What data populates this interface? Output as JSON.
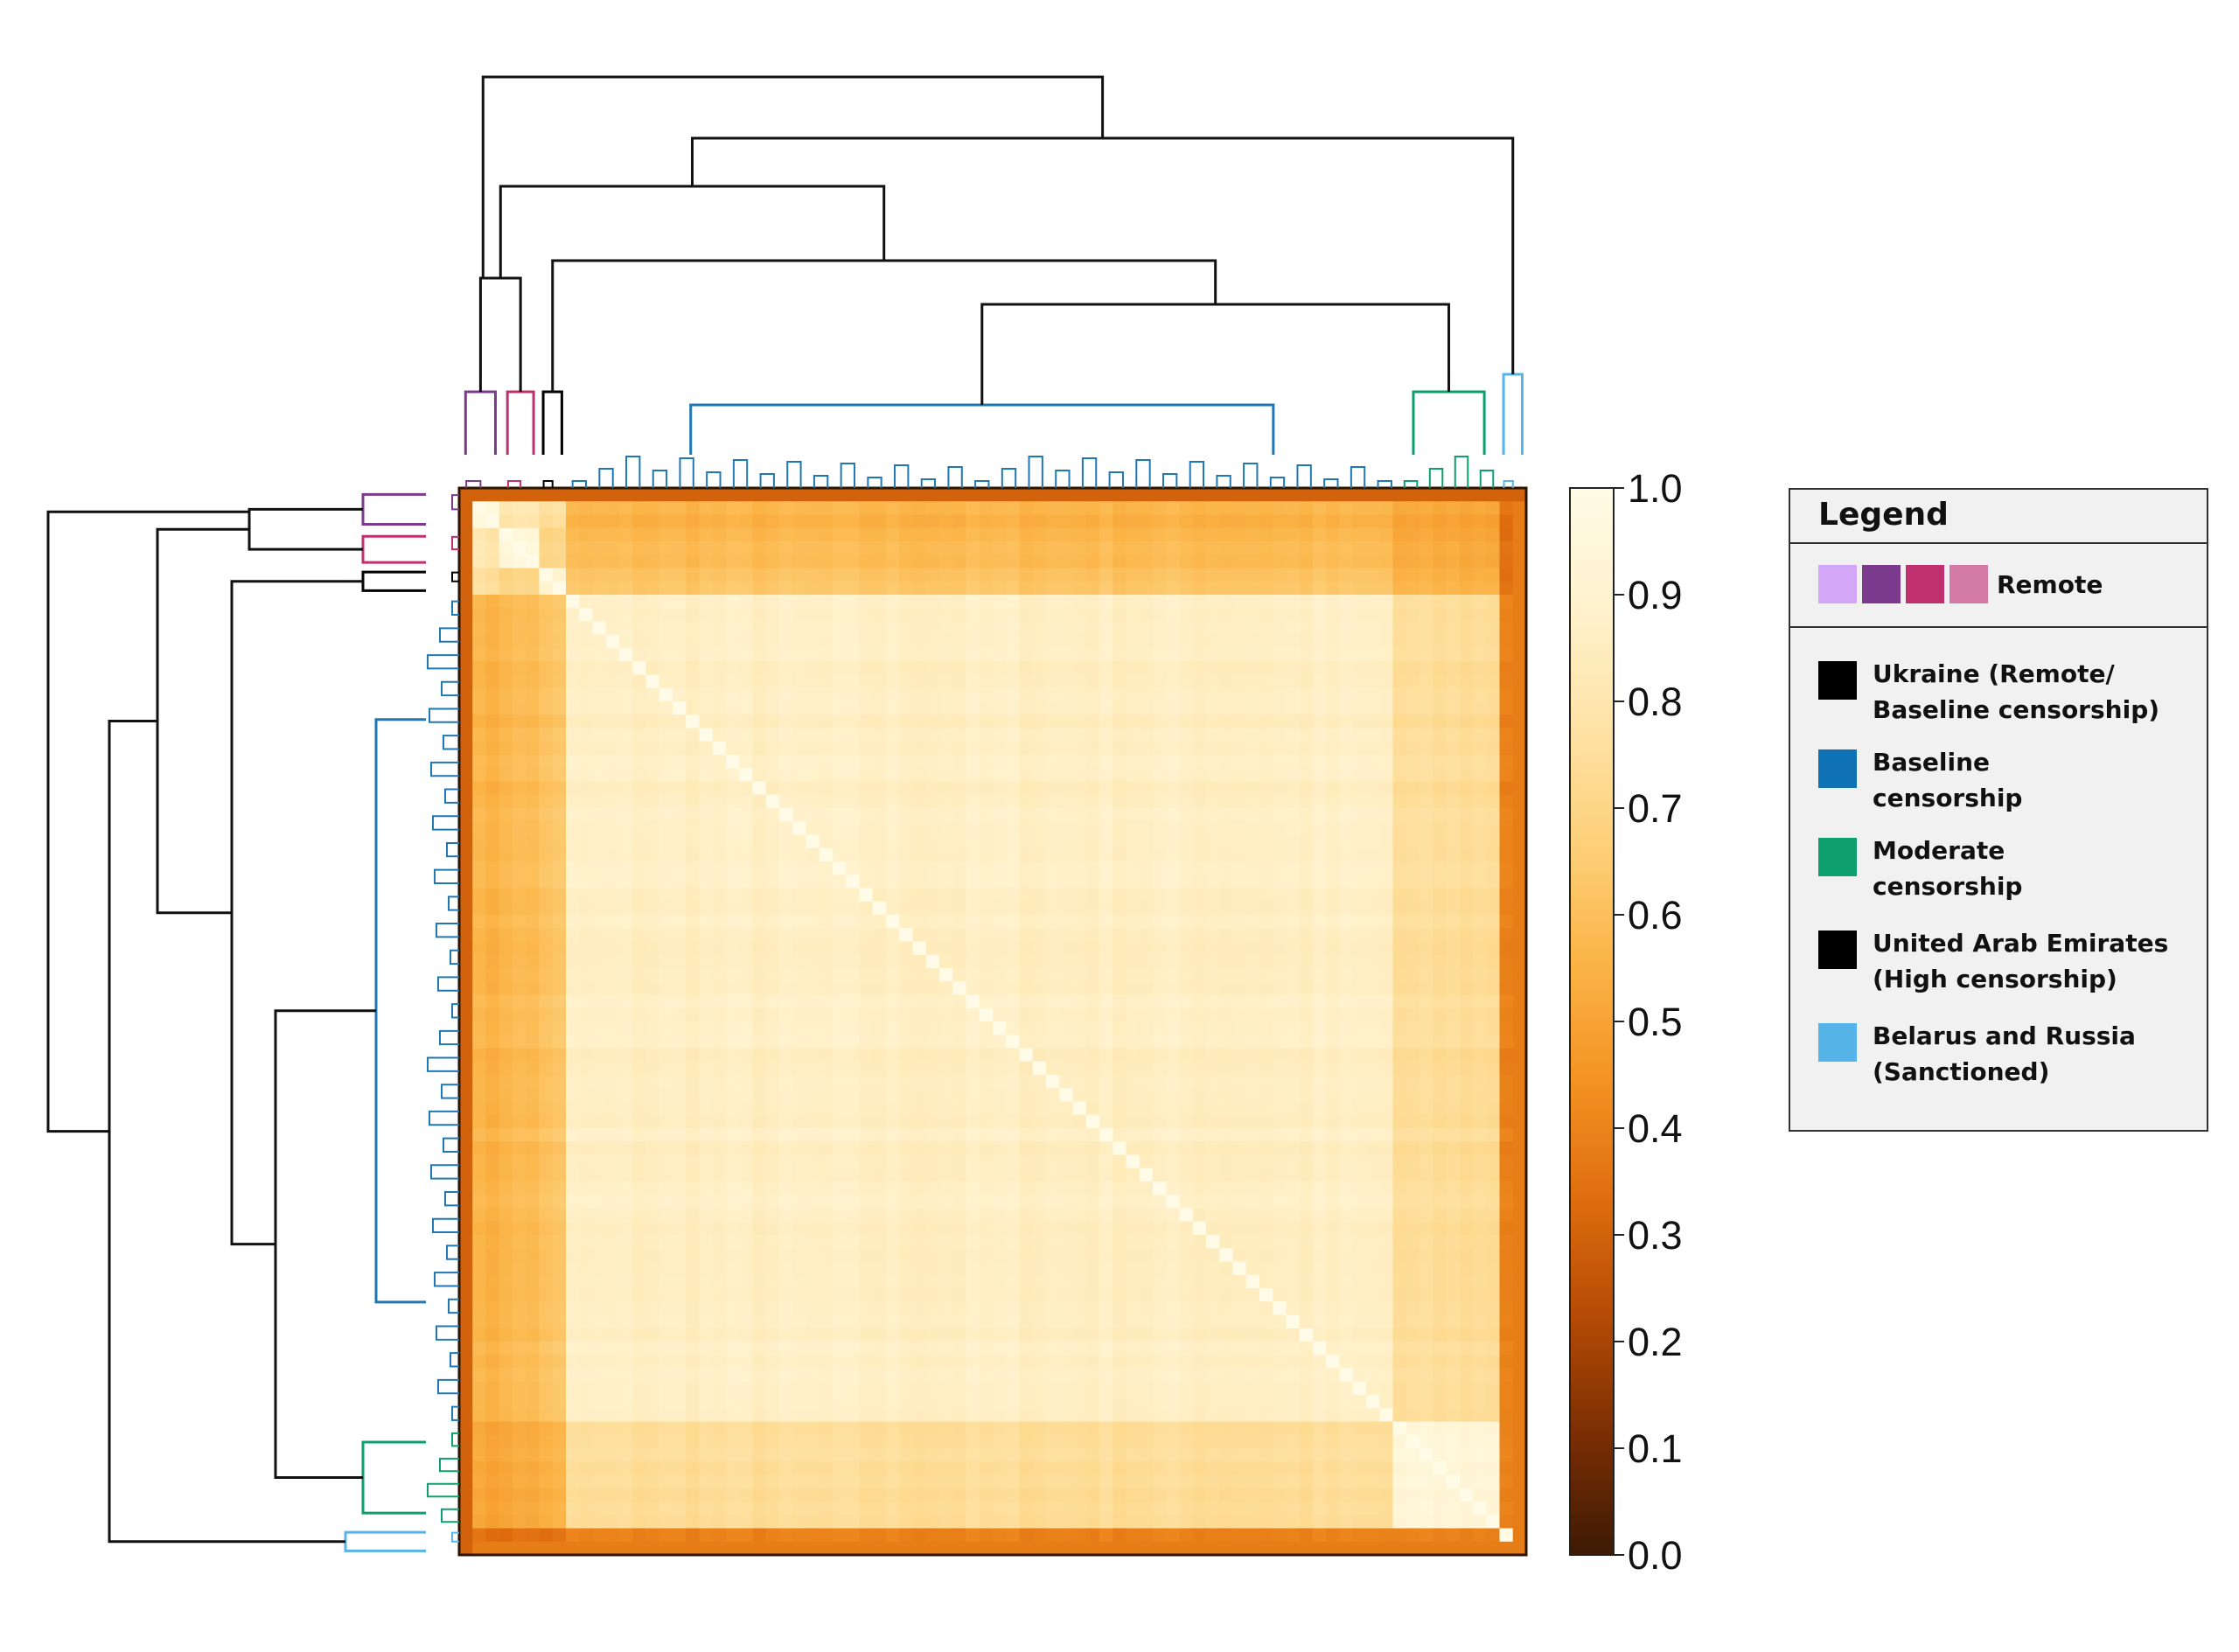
{
  "chart_data": {
    "type": "heatmap",
    "subtype": "clustered similarity matrix with row and column dendrograms",
    "title": "",
    "xlabel": "",
    "ylabel": "",
    "grid": false,
    "colorbar": {
      "range": [
        0.0,
        1.0
      ],
      "ticks": [
        "0.0",
        "0.1",
        "0.2",
        "0.3",
        "0.4",
        "0.5",
        "0.6",
        "0.7",
        "0.8",
        "0.9",
        "1.0"
      ],
      "colormap": [
        "#3d1a04",
        "#7a2e04",
        "#b44a05",
        "#df6d0f",
        "#f39323",
        "#fbb447",
        "#fdd07a",
        "#fee3a6",
        "#fff2cd",
        "#fffbe6"
      ]
    },
    "clusters": [
      {
        "name": "Remote (purple)",
        "color": "#7b3a8c",
        "fraction_start": 0.0,
        "fraction_end": 0.04
      },
      {
        "name": "Remote (magenta)",
        "color": "#c0306e",
        "fraction_start": 0.04,
        "fraction_end": 0.075
      },
      {
        "name": "Ukraine",
        "color": "#000000",
        "fraction_start": 0.075,
        "fraction_end": 0.1
      },
      {
        "name": "Baseline censorship",
        "color": "#1f77b4",
        "fraction_start": 0.1,
        "fraction_end": 0.88
      },
      {
        "name": "Moderate censorship",
        "color": "#0e9f6e",
        "fraction_start": 0.88,
        "fraction_end": 0.975
      },
      {
        "name": "Belarus and Russia",
        "color": "#56b4e9",
        "fraction_start": 0.975,
        "fraction_end": 1.0
      }
    ],
    "blocks": [
      {
        "rows": "Remote",
        "cols": "Remote",
        "value": 0.95
      },
      {
        "rows": "Remote",
        "cols": "Baseline censorship",
        "value": 0.55
      },
      {
        "rows": "Baseline censorship",
        "cols": "Baseline censorship",
        "value": 0.85
      },
      {
        "rows": "Moderate censorship",
        "cols": "Moderate censorship",
        "value": 0.93
      },
      {
        "rows": "Moderate censorship",
        "cols": "Baseline censorship",
        "value": 0.75
      },
      {
        "rows": "Belarus and Russia",
        "cols": "all",
        "value": 0.4
      }
    ]
  },
  "legend": {
    "title": "Legend",
    "remote": {
      "label": "Remote",
      "colors": [
        "#d4a6f7",
        "#7b3a8c",
        "#c0306e",
        "#d47aa6"
      ]
    },
    "items": [
      {
        "label": "Ukraine (Remote/\nBaseline censorship)",
        "color": "#000000"
      },
      {
        "label": "Baseline\ncensorship",
        "color": "#0e72b4"
      },
      {
        "label": "Moderate\ncensorship",
        "color": "#0e9f6e"
      },
      {
        "label": "United Arab Emirates\n(High censorship)",
        "color": "#000000"
      },
      {
        "label": "Belarus and Russia\n(Sanctioned)",
        "color": "#56b4e9"
      }
    ]
  }
}
